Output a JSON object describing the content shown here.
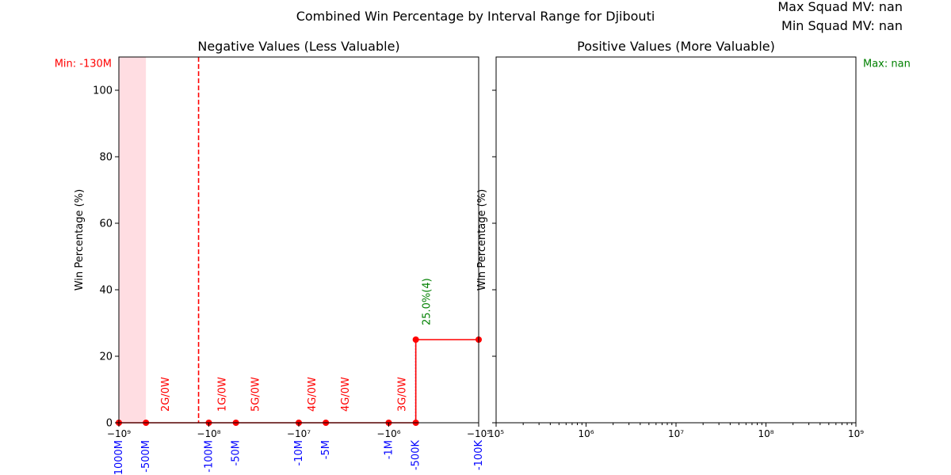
{
  "figure": {
    "suptitle": "Combined Win Percentage by Interval Range for Djibouti",
    "max_label": "Max Squad MV: nan",
    "min_label": "Min Squad MV: nan"
  },
  "colors": {
    "line": "#ff0000",
    "shade": "#ffdde2",
    "vline": "#ff0000",
    "win_annotation": "#008000",
    "interval_label": "#0000ff",
    "dotted": "#0000cc"
  },
  "chart_data": [
    {
      "type": "line",
      "title": "Negative Values (Less Valuable)",
      "ylabel": "Win Percentage (%)",
      "xlabel": "",
      "xscale": "symlog",
      "xlim": [
        -1000000000,
        -100000
      ],
      "ylim": [
        0,
        110
      ],
      "grid": false,
      "yticks": [
        0,
        20,
        40,
        60,
        80,
        100
      ],
      "ytick_labels": [
        "0",
        "20",
        "40",
        "60",
        "80",
        "100"
      ],
      "xticks": [
        -1000000000,
        -100000000,
        -10000000,
        -1000000,
        -100000
      ],
      "xtick_labels": [
        "−10⁹",
        "−10⁸",
        "−10⁷",
        "−10⁶",
        "−10⁵"
      ],
      "points": [
        {
          "x": -1000000000,
          "y": 0
        },
        {
          "x": -500000000,
          "y": 0
        },
        {
          "x": -100000000,
          "y": 0
        },
        {
          "x": -50000000,
          "y": 0
        },
        {
          "x": -10000000,
          "y": 0
        },
        {
          "x": -5000000,
          "y": 0
        },
        {
          "x": -1000000,
          "y": 0
        },
        {
          "x": -500000,
          "y": 0
        },
        {
          "x": -500000,
          "y": 25
        },
        {
          "x": -100000,
          "y": 25
        }
      ],
      "interval_labels": [
        {
          "x": -1000000000,
          "text": "-1000M"
        },
        {
          "x": -500000000,
          "text": "-500M"
        },
        {
          "x": -100000000,
          "text": "-100M"
        },
        {
          "x": -50000000,
          "text": "-50M"
        },
        {
          "x": -10000000,
          "text": "-10M"
        },
        {
          "x": -5000000,
          "text": "-5M"
        },
        {
          "x": -1000000,
          "text": "-1M"
        },
        {
          "x": -500000,
          "text": "-500K"
        },
        {
          "x": -100000,
          "text": "-100K"
        }
      ],
      "game_annotations": [
        {
          "x": -300000000,
          "text": "2G/0W"
        },
        {
          "x": -70000000,
          "text": "1G/0W"
        },
        {
          "x": -30000000,
          "text": "5G/0W"
        },
        {
          "x": -7000000,
          "text": "4G/0W"
        },
        {
          "x": -3000000,
          "text": "4G/0W"
        },
        {
          "x": -700000,
          "text": "3G/0W"
        }
      ],
      "win_annotations": [
        {
          "x": -500000,
          "y": 25,
          "text": "25.0%(4)"
        }
      ],
      "shade_range": [
        -1000000000,
        -500000000
      ],
      "min_marker": {
        "x": -130000000,
        "text": "Min: -130M"
      },
      "dotted_segment": {
        "x": -500000,
        "y0": 0,
        "y1": 25
      }
    },
    {
      "type": "line",
      "title": "Positive Values (More Valuable)",
      "ylabel": "Win Percentage (%)",
      "xlabel": "",
      "xscale": "log",
      "xlim": [
        100000,
        1000000000
      ],
      "ylim": [
        0,
        110
      ],
      "grid": false,
      "xticks": [
        100000,
        1000000,
        10000000,
        100000000,
        1000000000
      ],
      "xtick_labels": [
        "10⁵",
        "10⁶",
        "10⁷",
        "10⁸",
        "10⁹"
      ],
      "points": [],
      "max_marker": {
        "text": "Max: nan"
      }
    }
  ]
}
